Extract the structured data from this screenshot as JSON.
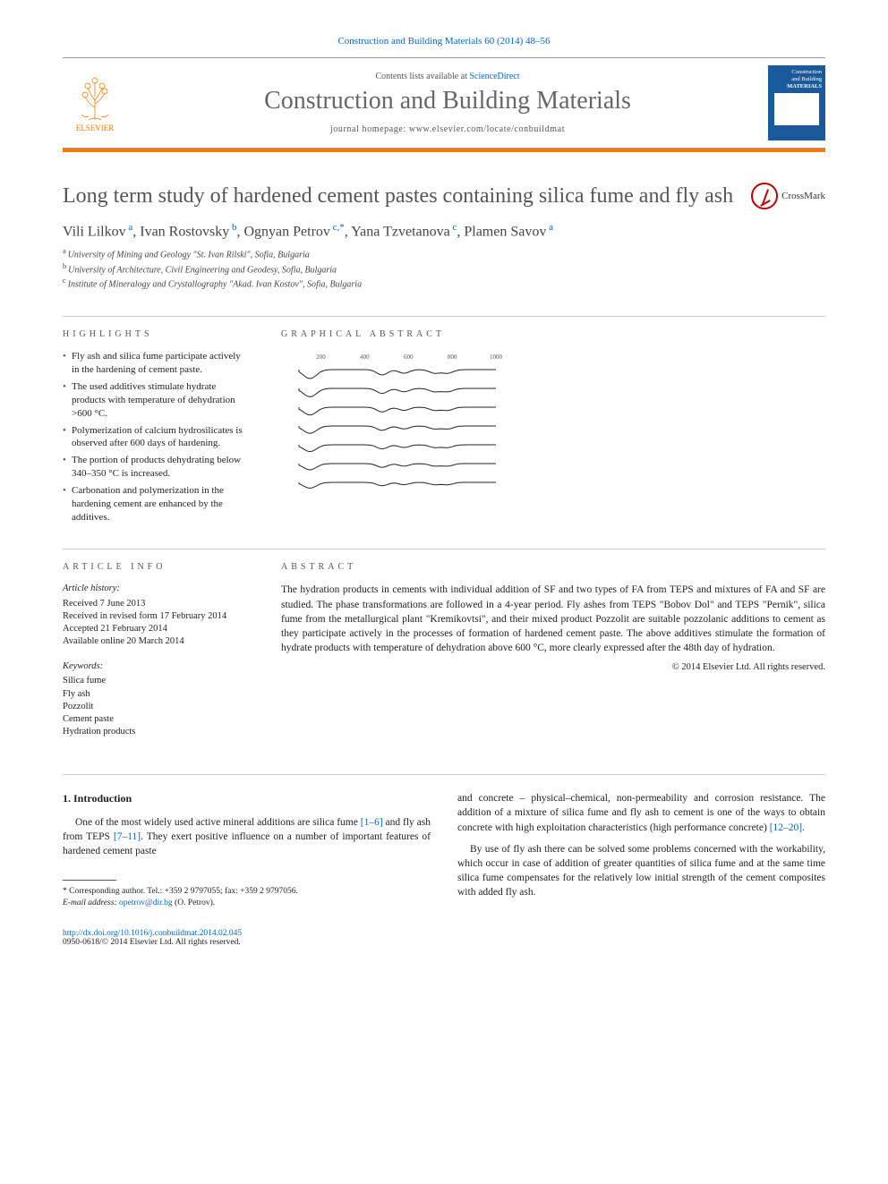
{
  "citation": "Construction and Building Materials 60 (2014) 48–56",
  "header": {
    "contents_prefix": "Contents lists available at ",
    "contents_link": "ScienceDirect",
    "journal_name": "Construction and Building Materials",
    "homepage_prefix": "journal homepage: ",
    "homepage_url": "www.elsevier.com/locate/conbuildmat",
    "publisher": "ELSEVIER",
    "cover_line1": "Construction",
    "cover_line2": "and Building",
    "cover_line3": "MATERIALS"
  },
  "colors": {
    "accent": "#ff7a00",
    "link": "#0066cc",
    "cover_bg": "#1a5a9a",
    "crossmark": "#b00000"
  },
  "title": "Long term study of hardened cement pastes containing silica fume and fly ash",
  "crossmark": "CrossMark",
  "authors_html": [
    {
      "name": "Vili Lilkov",
      "sup": "a"
    },
    {
      "name": "Ivan Rostovsky",
      "sup": "b"
    },
    {
      "name": "Ognyan Petrov",
      "sup": "c,*",
      "last_sep": ","
    },
    {
      "name": "Yana Tzvetanova",
      "sup": "c"
    },
    {
      "name": "Plamen Savov",
      "sup": "a"
    }
  ],
  "affiliations": [
    {
      "sup": "a",
      "text": "University of Mining and Geology \"St. Ivan Rilski\", Sofia, Bulgaria"
    },
    {
      "sup": "b",
      "text": "University of Architecture, Civil Engineering and Geodesy, Sofia, Bulgaria"
    },
    {
      "sup": "c",
      "text": "Institute of Mineralogy and Crystallography \"Akad. Ivan Kostov\", Sofia, Bulgaria"
    }
  ],
  "highlights_label": "HIGHLIGHTS",
  "highlights": [
    "Fly ash and silica fume participate actively in the hardening of cement paste.",
    "The used additives stimulate hydrate products with temperature of dehydration >600 °C.",
    "Polymerization of calcium hydrosilicates is observed after 600 days of hardening.",
    "The portion of products dehydrating below 340–350 °C is increased.",
    "Carbonation and polymerization in the hardening cement are enhanced by the additives."
  ],
  "graphical_abstract_label": "GRAPHICAL ABSTRACT",
  "graphical_abstract": {
    "type": "line",
    "curves": 7,
    "x_range": [
      100,
      1000
    ],
    "x_ticks": [
      200,
      400,
      600,
      800,
      1000
    ],
    "peak_positions": [
      150,
      480,
      580,
      720,
      780
    ],
    "line_color": "#222222",
    "line_width": 1,
    "background": "#ffffff"
  },
  "article_info_label": "ARTICLE INFO",
  "article_info": {
    "history_h": "Article history:",
    "history": [
      "Received 7 June 2013",
      "Received in revised form 17 February 2014",
      "Accepted 21 February 2014",
      "Available online 20 March 2014"
    ],
    "keywords_h": "Keywords:",
    "keywords": [
      "Silica fume",
      "Fly ash",
      "Pozzolit",
      "Cement paste",
      "Hydration products"
    ]
  },
  "abstract_label": "ABSTRACT",
  "abstract": "The hydration products in cements with individual addition of SF and two types of FA from TEPS and mixtures of FA and SF are studied. The phase transformations are followed in a 4-year period. Fly ashes from TEPS \"Bobov Dol\" and TEPS \"Pernik\", silica fume from the metallurgical plant \"Kremikovtsi\", and their mixed product Pozzolit are suitable pozzolanic additions to cement as they participate actively in the processes of formation of hardened cement paste. The above additives stimulate the formation of hydrate products with temperature of dehydration above 600 °C, more clearly expressed after the 48th day of hydration.",
  "copyright": "© 2014 Elsevier Ltd. All rights reserved.",
  "intro_heading": "1. Introduction",
  "intro_p1_pre": "One of the most widely used active mineral additions are silica fume ",
  "intro_p1_link1": "[1–6]",
  "intro_p1_mid": " and fly ash from TEPS ",
  "intro_p1_link2": "[7–11]",
  "intro_p1_post": ". They exert positive influence on a number of important features of hardened cement paste",
  "intro_p2_pre": "and concrete – physical–chemical, non-permeability and corrosion resistance. The addition of a mixture of silica fume and fly ash to cement is one of the ways to obtain concrete with high exploitation characteristics (high performance concrete) ",
  "intro_p2_link": "[12–20]",
  "intro_p2_post": ".",
  "intro_p3": "By use of fly ash there can be solved some problems concerned with the workability, which occur in case of addition of greater quantities of silica fume and at the same time silica fume compensates for the relatively low initial strength of the cement composites with added fly ash.",
  "corresponding": {
    "star": "*",
    "text": "Corresponding author. Tel.: +359 2 9797055; fax: +359 2 9797056.",
    "email_label": "E-mail address: ",
    "email": "opetrov@dir.bg",
    "email_name": " (O. Petrov)."
  },
  "footer": {
    "doi": "http://dx.doi.org/10.1016/j.conbuildmat.2014.02.045",
    "issn_copyright": "0950-0618/© 2014 Elsevier Ltd. All rights reserved."
  }
}
